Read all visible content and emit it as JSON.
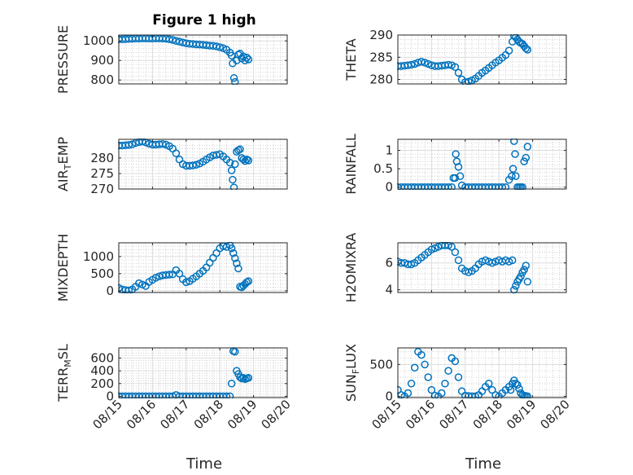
{
  "figure": {
    "title": "Figure 1 high",
    "xlabel": "Time"
  },
  "colors": {
    "marker": "#0072bd",
    "axes": "#262626",
    "grid_major": "#dcdcdc",
    "grid_minor": "#c8c8c8"
  },
  "chart_data": [
    {
      "type": "scatter",
      "ylabel": "PRESSURE",
      "xlim": [
        0,
        5
      ],
      "ylim": [
        780,
        1030
      ],
      "xticks": [
        0,
        1,
        2,
        3,
        4,
        5
      ],
      "xticklabels": [
        "",
        "",
        "",
        "",
        "",
        ""
      ],
      "yticks": [
        800,
        900,
        1000
      ],
      "yticklabels": [
        "800",
        "900",
        "1000"
      ],
      "grid": true,
      "minor_grid": true,
      "x": [
        0.0,
        0.1,
        0.2,
        0.3,
        0.4,
        0.5,
        0.6,
        0.7,
        0.8,
        0.9,
        1.0,
        1.1,
        1.2,
        1.3,
        1.4,
        1.5,
        1.6,
        1.7,
        1.8,
        1.9,
        2.0,
        2.1,
        2.2,
        2.3,
        2.4,
        2.5,
        2.6,
        2.7,
        2.8,
        2.9,
        3.0,
        3.1,
        3.2,
        3.3,
        3.35,
        3.38,
        3.42,
        3.45,
        3.5,
        3.55,
        3.6,
        3.65,
        3.7,
        3.75,
        3.8,
        3.85
      ],
      "y": [
        1008,
        1008,
        1009,
        1010,
        1011,
        1012,
        1012,
        1013,
        1013,
        1012,
        1012,
        1013,
        1013,
        1012,
        1011,
        1008,
        1005,
        1000,
        996,
        992,
        988,
        985,
        984,
        982,
        981,
        980,
        978,
        976,
        975,
        972,
        968,
        963,
        955,
        940,
        925,
        885,
        810,
        790,
        900,
        930,
        935,
        910,
        920,
        900,
        915,
        905
      ]
    },
    {
      "type": "scatter",
      "ylabel": "THETA",
      "xlim": [
        0,
        5
      ],
      "ylim": [
        279,
        290
      ],
      "xticks": [
        0,
        1,
        2,
        3,
        4,
        5
      ],
      "xticklabels": [
        "",
        "",
        "",
        "",
        "",
        ""
      ],
      "yticks": [
        280,
        285,
        290
      ],
      "yticklabels": [
        "280",
        "285",
        "290"
      ],
      "grid": true,
      "minor_grid": true,
      "x": [
        0.0,
        0.1,
        0.2,
        0.3,
        0.4,
        0.5,
        0.6,
        0.7,
        0.8,
        0.9,
        1.0,
        1.1,
        1.2,
        1.3,
        1.4,
        1.5,
        1.6,
        1.7,
        1.8,
        1.9,
        2.0,
        2.1,
        2.2,
        2.3,
        2.4,
        2.5,
        2.6,
        2.7,
        2.8,
        2.9,
        3.0,
        3.1,
        3.2,
        3.3,
        3.4,
        3.45,
        3.5,
        3.55,
        3.6,
        3.65,
        3.7,
        3.75,
        3.8,
        3.85
      ],
      "y": [
        283.0,
        283.0,
        283.1,
        283.2,
        283.3,
        283.5,
        283.8,
        284.0,
        283.8,
        283.5,
        283.2,
        283.0,
        283.0,
        283.1,
        283.2,
        283.3,
        283.2,
        282.8,
        281.5,
        280.0,
        279.4,
        279.5,
        279.8,
        280.2,
        280.8,
        281.5,
        282.0,
        282.6,
        283.2,
        283.8,
        284.3,
        284.9,
        285.5,
        286.5,
        288.5,
        289.8,
        289.5,
        289.0,
        288.5,
        288.2,
        288.0,
        287.5,
        287.0,
        286.7
      ]
    },
    {
      "type": "scatter",
      "ylabel": "AIR_TEMP",
      "xlim": [
        0,
        5
      ],
      "ylim": [
        270,
        286
      ],
      "xticks": [
        0,
        1,
        2,
        3,
        4,
        5
      ],
      "xticklabels": [
        "",
        "",
        "",
        "",
        "",
        ""
      ],
      "yticks": [
        270,
        275,
        280
      ],
      "yticklabels": [
        "270",
        "275",
        "280"
      ],
      "grid": true,
      "minor_grid": true,
      "x": [
        0.0,
        0.1,
        0.2,
        0.3,
        0.4,
        0.5,
        0.6,
        0.7,
        0.8,
        0.9,
        1.0,
        1.1,
        1.2,
        1.3,
        1.4,
        1.5,
        1.6,
        1.7,
        1.8,
        1.9,
        2.0,
        2.1,
        2.2,
        2.3,
        2.4,
        2.5,
        2.6,
        2.7,
        2.8,
        2.9,
        3.0,
        3.1,
        3.2,
        3.3,
        3.35,
        3.38,
        3.42,
        3.45,
        3.5,
        3.55,
        3.6,
        3.65,
        3.7,
        3.75,
        3.8,
        3.85
      ],
      "y": [
        284.0,
        284.0,
        284.1,
        284.2,
        284.4,
        284.8,
        285.1,
        285.3,
        285.0,
        284.6,
        284.3,
        284.3,
        284.4,
        284.5,
        284.3,
        283.8,
        283.0,
        281.5,
        279.5,
        278.0,
        277.5,
        277.5,
        277.6,
        277.8,
        278.2,
        278.8,
        279.5,
        280.2,
        280.8,
        281.0,
        281.2,
        280.5,
        279.5,
        278.5,
        276.0,
        273.0,
        270.5,
        278.0,
        282.0,
        282.5,
        282.8,
        280.0,
        279.5,
        279.0,
        279.5,
        279.2
      ]
    },
    {
      "type": "scatter",
      "ylabel": "RAINFALL",
      "xlim": [
        0,
        5
      ],
      "ylim": [
        -0.05,
        1.3
      ],
      "xticks": [
        0,
        1,
        2,
        3,
        4,
        5
      ],
      "xticklabels": [
        "",
        "",
        "",
        "",
        "",
        ""
      ],
      "yticks": [
        0,
        0.5,
        1
      ],
      "yticklabels": [
        "0",
        "0.5",
        "1"
      ],
      "grid": true,
      "minor_grid": true,
      "x": [
        0.0,
        0.1,
        0.2,
        0.3,
        0.4,
        0.5,
        0.6,
        0.7,
        0.8,
        0.9,
        1.0,
        1.1,
        1.2,
        1.3,
        1.4,
        1.5,
        1.6,
        1.65,
        1.7,
        1.72,
        1.75,
        1.8,
        1.85,
        1.9,
        2.0,
        2.1,
        2.2,
        2.3,
        2.4,
        2.5,
        2.6,
        2.7,
        2.8,
        2.9,
        3.0,
        3.1,
        3.2,
        3.3,
        3.38,
        3.42,
        3.45,
        3.48,
        3.5,
        3.55,
        3.6,
        3.65,
        3.7,
        3.75,
        3.8,
        3.85
      ],
      "y": [
        0,
        0,
        0,
        0,
        0,
        0,
        0,
        0,
        0,
        0,
        0,
        0,
        0,
        0,
        0,
        0,
        0,
        0.25,
        0.25,
        0.9,
        0.7,
        0.55,
        0.3,
        0.05,
        0,
        0,
        0,
        0,
        0,
        0,
        0,
        0,
        0,
        0,
        0,
        0,
        0,
        0.2,
        0.3,
        0.5,
        1.25,
        0.9,
        0.3,
        0,
        0,
        0,
        0,
        0.7,
        0.8,
        1.1
      ]
    },
    {
      "type": "scatter",
      "ylabel": "MIXDEPTH",
      "xlim": [
        0,
        5
      ],
      "ylim": [
        -50,
        1400
      ],
      "xticks": [
        0,
        1,
        2,
        3,
        4,
        5
      ],
      "xticklabels": [
        "",
        "",
        "",
        "",
        "",
        ""
      ],
      "yticks": [
        0,
        500,
        1000
      ],
      "yticklabels": [
        "0",
        "500",
        "1000"
      ],
      "grid": true,
      "minor_grid": true,
      "x": [
        0.0,
        0.1,
        0.2,
        0.3,
        0.4,
        0.5,
        0.6,
        0.7,
        0.8,
        0.9,
        1.0,
        1.1,
        1.2,
        1.3,
        1.4,
        1.5,
        1.6,
        1.7,
        1.8,
        1.9,
        2.0,
        2.1,
        2.2,
        2.3,
        2.4,
        2.5,
        2.6,
        2.7,
        2.8,
        2.9,
        3.0,
        3.1,
        3.2,
        3.3,
        3.35,
        3.4,
        3.45,
        3.5,
        3.55,
        3.6,
        3.65,
        3.7,
        3.75,
        3.8,
        3.85
      ],
      "y": [
        80,
        40,
        20,
        10,
        40,
        120,
        220,
        180,
        140,
        260,
        320,
        380,
        420,
        450,
        460,
        470,
        480,
        600,
        500,
        340,
        250,
        280,
        350,
        420,
        500,
        580,
        680,
        820,
        960,
        1100,
        1240,
        1300,
        1280,
        1330,
        1240,
        1100,
        950,
        800,
        650,
        120,
        100,
        150,
        200,
        250,
        280
      ]
    },
    {
      "type": "scatter",
      "ylabel": "H2OMIXRA",
      "xlim": [
        0,
        5
      ],
      "ylim": [
        3.8,
        7.5
      ],
      "xticks": [
        0,
        1,
        2,
        3,
        4,
        5
      ],
      "xticklabels": [
        "",
        "",
        "",
        "",
        "",
        ""
      ],
      "yticks": [
        4,
        6
      ],
      "yticklabels": [
        "4",
        "6"
      ],
      "grid": true,
      "minor_grid": true,
      "x": [
        0.0,
        0.1,
        0.2,
        0.3,
        0.4,
        0.5,
        0.6,
        0.7,
        0.8,
        0.9,
        1.0,
        1.1,
        1.2,
        1.3,
        1.4,
        1.5,
        1.6,
        1.7,
        1.8,
        1.9,
        2.0,
        2.1,
        2.2,
        2.3,
        2.4,
        2.5,
        2.6,
        2.7,
        2.8,
        2.9,
        3.0,
        3.1,
        3.2,
        3.3,
        3.4,
        3.45,
        3.5,
        3.55,
        3.6,
        3.65,
        3.7,
        3.75,
        3.8,
        3.85
      ],
      "y": [
        6.1,
        6.0,
        6.0,
        5.9,
        5.9,
        6.0,
        6.2,
        6.4,
        6.6,
        6.8,
        7.0,
        7.1,
        7.2,
        7.3,
        7.3,
        7.3,
        7.2,
        6.8,
        6.2,
        5.6,
        5.4,
        5.3,
        5.4,
        5.6,
        5.9,
        6.1,
        6.2,
        6.1,
        6.0,
        6.1,
        6.2,
        6.1,
        6.2,
        6.1,
        6.2,
        4.0,
        4.3,
        4.6,
        4.8,
        5.0,
        5.3,
        5.5,
        5.8,
        4.6
      ]
    },
    {
      "type": "scatter",
      "ylabel": "TERR_MSL",
      "xlim": [
        0,
        5
      ],
      "ylim": [
        -20,
        760
      ],
      "xticks": [
        0,
        1,
        2,
        3,
        4,
        5
      ],
      "xticklabels": [
        "08/15",
        "08/16",
        "08/17",
        "08/18",
        "08/19",
        "08/20"
      ],
      "yticks": [
        0,
        200,
        400,
        600
      ],
      "yticklabels": [
        "0",
        "200",
        "400",
        "600"
      ],
      "grid": true,
      "minor_grid": true,
      "x": [
        0.0,
        0.1,
        0.2,
        0.3,
        0.4,
        0.5,
        0.6,
        0.7,
        0.8,
        0.9,
        1.0,
        1.1,
        1.2,
        1.3,
        1.4,
        1.5,
        1.6,
        1.7,
        1.8,
        1.9,
        2.0,
        2.1,
        2.2,
        2.3,
        2.4,
        2.5,
        2.6,
        2.7,
        2.8,
        2.9,
        3.0,
        3.1,
        3.2,
        3.3,
        3.35,
        3.4,
        3.45,
        3.5,
        3.55,
        3.6,
        3.65,
        3.7,
        3.75,
        3.8,
        3.85
      ],
      "y": [
        0,
        0,
        0,
        0,
        0,
        0,
        0,
        0,
        0,
        0,
        0,
        0,
        0,
        0,
        0,
        0,
        0,
        20,
        0,
        0,
        0,
        0,
        0,
        0,
        0,
        0,
        0,
        0,
        0,
        0,
        0,
        0,
        0,
        0,
        200,
        710,
        700,
        400,
        350,
        300,
        280,
        290,
        270,
        280,
        290
      ]
    },
    {
      "type": "scatter",
      "ylabel": "SUN_FLUX",
      "xlim": [
        0,
        5
      ],
      "ylim": [
        -20,
        760
      ],
      "xticks": [
        0,
        1,
        2,
        3,
        4,
        5
      ],
      "xticklabels": [
        "08/15",
        "08/16",
        "08/17",
        "08/18",
        "08/19",
        "08/20"
      ],
      "yticks": [
        0,
        500
      ],
      "yticklabels": [
        "0",
        "500"
      ],
      "grid": true,
      "minor_grid": true,
      "x": [
        0.0,
        0.1,
        0.2,
        0.3,
        0.4,
        0.5,
        0.6,
        0.7,
        0.8,
        0.9,
        1.0,
        1.1,
        1.2,
        1.3,
        1.4,
        1.5,
        1.6,
        1.7,
        1.8,
        1.9,
        2.0,
        2.1,
        2.2,
        2.3,
        2.4,
        2.5,
        2.6,
        2.7,
        2.8,
        2.9,
        3.0,
        3.1,
        3.2,
        3.3,
        3.35,
        3.4,
        3.45,
        3.5,
        3.55,
        3.6,
        3.65,
        3.7,
        3.75,
        3.8,
        3.85
      ],
      "y": [
        100,
        20,
        0,
        50,
        200,
        450,
        700,
        650,
        500,
        300,
        100,
        10,
        0,
        50,
        200,
        400,
        600,
        550,
        300,
        80,
        10,
        5,
        0,
        0,
        20,
        80,
        150,
        200,
        100,
        20,
        0,
        50,
        100,
        150,
        100,
        200,
        250,
        200,
        180,
        120,
        50,
        20,
        10,
        5,
        0
      ]
    }
  ]
}
